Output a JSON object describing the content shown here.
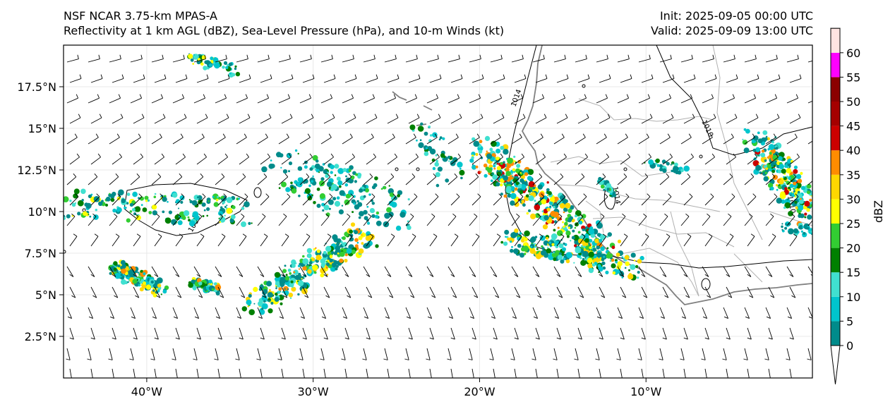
{
  "header": {
    "model": "NSF NCAR 3.75-km MPAS-A",
    "fields": "Reflectivity at 1 km AGL (dBZ), Sea-Level Pressure (hPa), and 10-m Winds (kt)",
    "init": "Init: 2025-09-05 00:00 UTC",
    "valid": "Valid: 2025-09-09 13:00 UTC"
  },
  "map": {
    "lon_range": [
      -45,
      0
    ],
    "lat_range": [
      0,
      20
    ],
    "lon_ticks": [
      {
        "value": -40,
        "label": "40°W"
      },
      {
        "value": -30,
        "label": "30°W"
      },
      {
        "value": -20,
        "label": "20°W"
      },
      {
        "value": -10,
        "label": "10°W"
      }
    ],
    "lat_ticks": [
      {
        "value": 2.5,
        "label": "2.5°N"
      },
      {
        "value": 5,
        "label": "5°N"
      },
      {
        "value": 7.5,
        "label": "7.5°N"
      },
      {
        "value": 10,
        "label": "10°N"
      },
      {
        "value": 12.5,
        "label": "12.5°N"
      },
      {
        "value": 15,
        "label": "15°N"
      },
      {
        "value": 17.5,
        "label": "17.5°N"
      }
    ],
    "isobar_labels": [
      "1014",
      "1014",
      "1010",
      "1014",
      "1010"
    ]
  },
  "colorbar": {
    "label": "dBZ",
    "ticks": [
      "0",
      "5",
      "10",
      "15",
      "20",
      "25",
      "30",
      "35",
      "40",
      "45",
      "50",
      "55",
      "60"
    ],
    "colors": [
      "#008b8b",
      "#00c5cd",
      "#40e0d0",
      "#008000",
      "#32cd32",
      "#ffff00",
      "#ffd700",
      "#ff8c00",
      "#cc0000",
      "#a50000",
      "#8b0000",
      "#ff00ff",
      "#ffe4e1"
    ]
  }
}
